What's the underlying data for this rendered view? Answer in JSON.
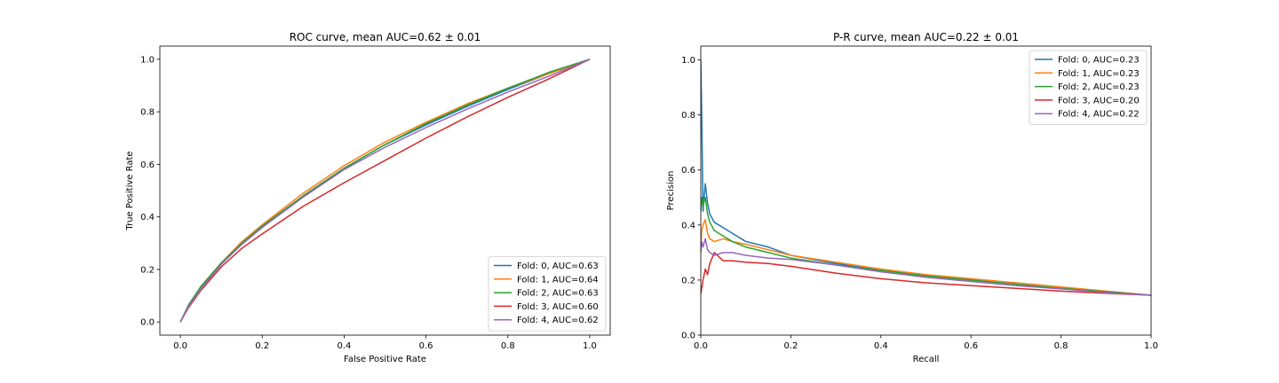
{
  "chart_data": [
    {
      "type": "line",
      "title": "ROC curve, mean AUC=0.62 ± 0.01",
      "xlabel": "False Positive Rate",
      "ylabel": "True Positive Rate",
      "xlim": [
        -0.05,
        1.05
      ],
      "ylim": [
        -0.05,
        1.05
      ],
      "xticks": [
        0.0,
        0.2,
        0.4,
        0.6,
        0.8,
        1.0
      ],
      "yticks": [
        0.0,
        0.2,
        0.4,
        0.6,
        0.8,
        1.0
      ],
      "grid": false,
      "legend_position": "lower-right",
      "series": [
        {
          "name": "Fold: 0, AUC=0.63",
          "color": "#1f77b4",
          "x": [
            0,
            0.02,
            0.05,
            0.1,
            0.15,
            0.2,
            0.3,
            0.4,
            0.5,
            0.6,
            0.7,
            0.8,
            0.9,
            1.0
          ],
          "y": [
            0,
            0.06,
            0.13,
            0.22,
            0.3,
            0.36,
            0.48,
            0.585,
            0.675,
            0.75,
            0.82,
            0.885,
            0.945,
            1.0
          ]
        },
        {
          "name": "Fold: 1, AUC=0.64",
          "color": "#ff7f0e",
          "x": [
            0,
            0.02,
            0.05,
            0.1,
            0.15,
            0.2,
            0.3,
            0.4,
            0.5,
            0.6,
            0.7,
            0.8,
            0.9,
            1.0
          ],
          "y": [
            0,
            0.06,
            0.13,
            0.225,
            0.305,
            0.37,
            0.49,
            0.595,
            0.685,
            0.76,
            0.83,
            0.89,
            0.945,
            1.0
          ]
        },
        {
          "name": "Fold: 2, AUC=0.63",
          "color": "#2ca02c",
          "x": [
            0,
            0.02,
            0.05,
            0.1,
            0.15,
            0.2,
            0.3,
            0.4,
            0.5,
            0.6,
            0.7,
            0.8,
            0.9,
            1.0
          ],
          "y": [
            0,
            0.065,
            0.135,
            0.225,
            0.3,
            0.365,
            0.48,
            0.585,
            0.675,
            0.755,
            0.825,
            0.89,
            0.95,
            1.0
          ]
        },
        {
          "name": "Fold: 3, AUC=0.60",
          "color": "#d62728",
          "x": [
            0,
            0.02,
            0.05,
            0.1,
            0.15,
            0.2,
            0.3,
            0.4,
            0.5,
            0.6,
            0.7,
            0.8,
            0.9,
            1.0
          ],
          "y": [
            0,
            0.055,
            0.12,
            0.21,
            0.28,
            0.335,
            0.44,
            0.53,
            0.615,
            0.7,
            0.78,
            0.855,
            0.925,
            1.0
          ]
        },
        {
          "name": "Fold: 4, AUC=0.62",
          "color": "#9467bd",
          "x": [
            0,
            0.02,
            0.05,
            0.1,
            0.15,
            0.2,
            0.3,
            0.4,
            0.5,
            0.6,
            0.7,
            0.8,
            0.9,
            1.0
          ],
          "y": [
            0,
            0.06,
            0.125,
            0.22,
            0.295,
            0.36,
            0.475,
            0.58,
            0.665,
            0.74,
            0.81,
            0.875,
            0.935,
            1.0
          ]
        }
      ]
    },
    {
      "type": "line",
      "title": "P-R curve, mean AUC=0.22 ± 0.01",
      "xlabel": "Recall",
      "ylabel": "Precision",
      "xlim": [
        0.0,
        1.0
      ],
      "ylim": [
        0.0,
        1.05
      ],
      "xticks": [
        0.0,
        0.2,
        0.4,
        0.6,
        0.8,
        1.0
      ],
      "yticks": [
        0.0,
        0.2,
        0.4,
        0.6,
        0.8,
        1.0
      ],
      "grid": false,
      "legend_position": "upper-right",
      "series": [
        {
          "name": "Fold: 0, AUC=0.23",
          "color": "#1f77b4",
          "x": [
            0.0,
            0.002,
            0.005,
            0.01,
            0.015,
            0.02,
            0.03,
            0.05,
            0.07,
            0.1,
            0.15,
            0.2,
            0.3,
            0.4,
            0.5,
            0.6,
            0.7,
            0.8,
            0.9,
            1.0
          ],
          "y": [
            1.0,
            0.8,
            0.45,
            0.55,
            0.48,
            0.44,
            0.41,
            0.39,
            0.37,
            0.34,
            0.32,
            0.29,
            0.26,
            0.235,
            0.215,
            0.2,
            0.185,
            0.17,
            0.158,
            0.145
          ]
        },
        {
          "name": "Fold: 1, AUC=0.23",
          "color": "#ff7f0e",
          "x": [
            0.0,
            0.002,
            0.005,
            0.01,
            0.015,
            0.02,
            0.03,
            0.05,
            0.07,
            0.1,
            0.15,
            0.2,
            0.3,
            0.4,
            0.5,
            0.6,
            0.7,
            0.8,
            0.9,
            1.0
          ],
          "y": [
            0.3,
            0.38,
            0.4,
            0.42,
            0.37,
            0.35,
            0.34,
            0.35,
            0.34,
            0.33,
            0.31,
            0.29,
            0.265,
            0.24,
            0.22,
            0.205,
            0.19,
            0.175,
            0.16,
            0.145
          ]
        },
        {
          "name": "Fold: 2, AUC=0.23",
          "color": "#2ca02c",
          "x": [
            0.0,
            0.002,
            0.005,
            0.01,
            0.015,
            0.02,
            0.03,
            0.05,
            0.07,
            0.1,
            0.15,
            0.2,
            0.3,
            0.4,
            0.5,
            0.6,
            0.7,
            0.8,
            0.9,
            1.0
          ],
          "y": [
            0.45,
            0.5,
            0.47,
            0.5,
            0.44,
            0.41,
            0.38,
            0.36,
            0.34,
            0.32,
            0.3,
            0.28,
            0.255,
            0.235,
            0.215,
            0.2,
            0.185,
            0.17,
            0.158,
            0.145
          ]
        },
        {
          "name": "Fold: 3, AUC=0.20",
          "color": "#d62728",
          "x": [
            0.0,
            0.002,
            0.005,
            0.01,
            0.015,
            0.02,
            0.03,
            0.05,
            0.07,
            0.1,
            0.15,
            0.2,
            0.3,
            0.4,
            0.5,
            0.6,
            0.7,
            0.8,
            0.9,
            1.0
          ],
          "y": [
            0.15,
            0.17,
            0.2,
            0.24,
            0.22,
            0.26,
            0.3,
            0.27,
            0.27,
            0.265,
            0.26,
            0.25,
            0.225,
            0.205,
            0.19,
            0.18,
            0.17,
            0.16,
            0.152,
            0.145
          ]
        },
        {
          "name": "Fold: 4, AUC=0.22",
          "color": "#9467bd",
          "x": [
            0.0,
            0.002,
            0.005,
            0.01,
            0.015,
            0.02,
            0.03,
            0.05,
            0.07,
            0.1,
            0.15,
            0.2,
            0.3,
            0.4,
            0.5,
            0.6,
            0.7,
            0.8,
            0.9,
            1.0
          ],
          "y": [
            0.3,
            0.34,
            0.32,
            0.35,
            0.31,
            0.3,
            0.29,
            0.3,
            0.3,
            0.29,
            0.28,
            0.275,
            0.255,
            0.23,
            0.21,
            0.195,
            0.18,
            0.168,
            0.155,
            0.145
          ]
        }
      ]
    }
  ]
}
